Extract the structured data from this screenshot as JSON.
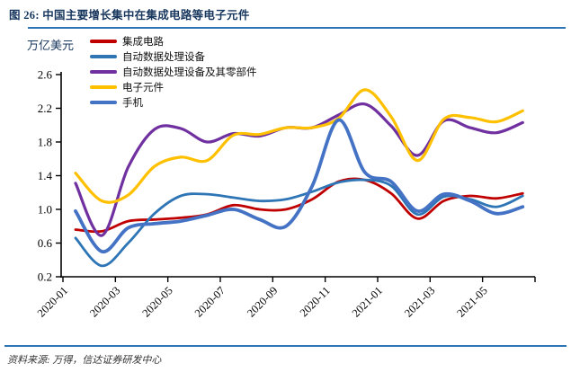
{
  "header": {
    "title": "图 26: 中国主要增长集中在集成电路等电子元件"
  },
  "footer": {
    "source": "资料来源: 万得，信达证券研发中心"
  },
  "chart_data": {
    "type": "line",
    "smooth": true,
    "unit_label": "万亿美元",
    "categories": [
      "2020-01",
      "2020-02",
      "2020-03",
      "2020-04",
      "2020-05",
      "2020-06",
      "2020-07",
      "2020-08",
      "2020-09",
      "2020-10",
      "2020-11",
      "2020-12",
      "2021-01",
      "2021-02",
      "2021-03",
      "2021-04",
      "2021-05",
      "2021-06"
    ],
    "x_tick_labels": [
      "2020-01",
      "2020-03",
      "2020-05",
      "2020-07",
      "2020-09",
      "2020-11",
      "2021-01",
      "2021-03",
      "2021-05"
    ],
    "y_ticks": [
      0.2,
      0.6,
      1.0,
      1.4,
      1.8,
      2.2,
      2.6
    ],
    "ylim": [
      0.2,
      2.6
    ],
    "grid": false,
    "legend_position": "top-left",
    "axis_color": "#000000",
    "accent_color": "#2E75B6",
    "series": [
      {
        "name": "集成电路",
        "color": "#C00000",
        "width": 2.8,
        "values": [
          0.76,
          0.74,
          0.86,
          0.88,
          0.9,
          0.94,
          1.05,
          1.0,
          1.0,
          1.12,
          1.33,
          1.35,
          1.19,
          0.89,
          1.1,
          1.16,
          1.13,
          1.19
        ]
      },
      {
        "name": "自动数据处理设备",
        "color": "#2E75B6",
        "width": 2.8,
        "values": [
          0.66,
          0.33,
          0.6,
          0.95,
          1.16,
          1.18,
          1.14,
          1.1,
          1.12,
          1.21,
          1.32,
          1.35,
          1.28,
          0.94,
          1.15,
          1.12,
          1.03,
          1.16
        ]
      },
      {
        "name": "自动数据处理设备及其零部件",
        "color": "#7030A0",
        "width": 3.2,
        "values": [
          1.31,
          0.69,
          1.5,
          1.95,
          1.96,
          1.8,
          1.9,
          1.87,
          1.97,
          1.97,
          2.12,
          2.25,
          1.99,
          1.64,
          2.05,
          1.97,
          1.91,
          2.03
        ]
      },
      {
        "name": "电子元件",
        "color": "#FFC000",
        "width": 3.2,
        "values": [
          1.43,
          1.1,
          1.17,
          1.51,
          1.62,
          1.58,
          1.88,
          1.89,
          1.97,
          1.97,
          2.08,
          2.42,
          2.1,
          1.58,
          2.07,
          2.09,
          2.04,
          2.17
        ]
      },
      {
        "name": "手机",
        "color": "#4472C4",
        "width": 3.8,
        "values": [
          0.98,
          0.5,
          0.78,
          0.83,
          0.86,
          0.93,
          1.0,
          0.88,
          0.8,
          1.28,
          2.06,
          1.44,
          1.33,
          0.98,
          1.18,
          1.1,
          0.95,
          1.03
        ]
      }
    ]
  }
}
